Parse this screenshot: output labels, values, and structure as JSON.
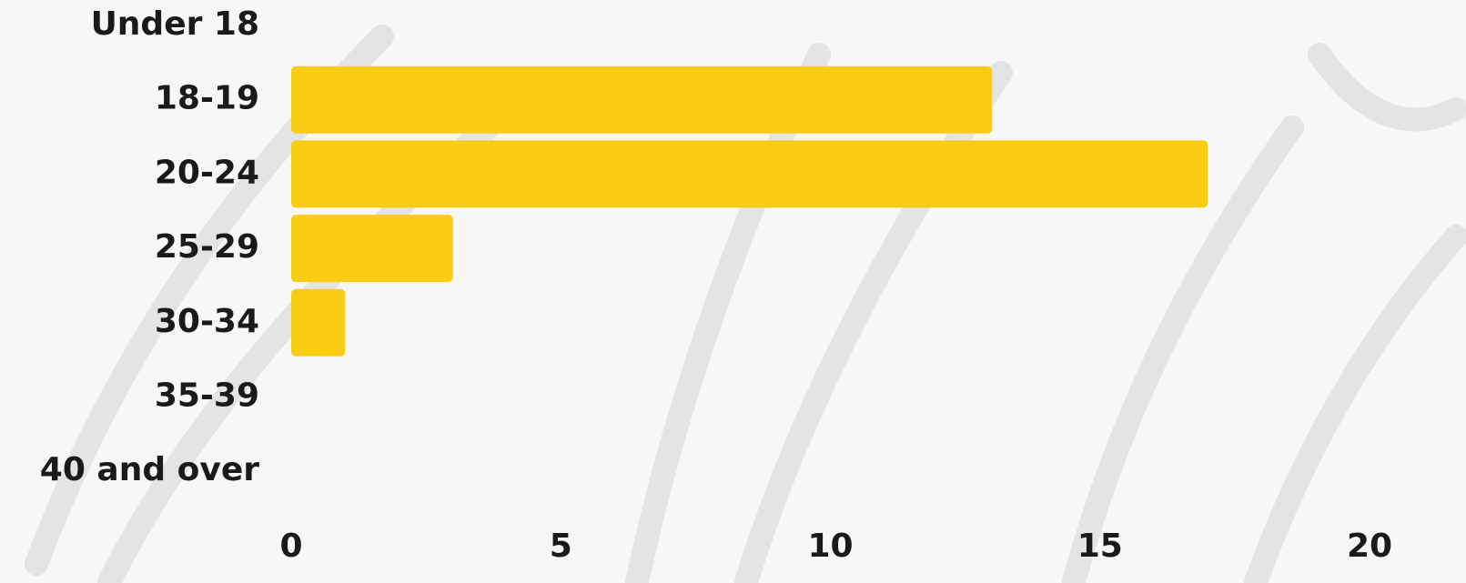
{
  "chart_data": {
    "type": "bar",
    "orientation": "horizontal",
    "categories": [
      "Under 18",
      "18-19",
      "20-24",
      "25-29",
      "30-34",
      "35-39",
      "40 and over"
    ],
    "values": [
      0,
      13,
      17,
      3,
      1,
      0,
      0
    ],
    "color": "#f9cc15",
    "xlim": [
      0,
      20
    ],
    "xticks": [
      0,
      5,
      10,
      15,
      20
    ],
    "grid": false
  }
}
